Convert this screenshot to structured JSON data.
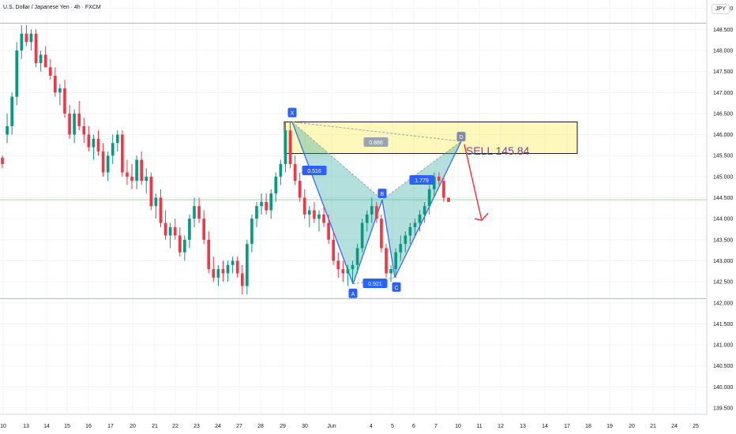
{
  "header": {
    "title": "U.S. Dollar / Japanese Yen · 4h · FXCM",
    "currency": "JPY"
  },
  "annotation": {
    "sell_label": "SELL 145.84"
  },
  "pattern": {
    "points": [
      {
        "name": "X",
        "date": "29",
        "price": 146.3
      },
      {
        "name": "A",
        "date": "Jun",
        "price": 142.45
      },
      {
        "name": "B",
        "date": "4",
        "price": 144.45
      },
      {
        "name": "C",
        "date": "5",
        "price": 142.6
      },
      {
        "name": "D",
        "date": "10",
        "price": 145.84
      }
    ],
    "ratios": [
      {
        "value": "0.516",
        "color": "#2962ff"
      },
      {
        "value": "0.886",
        "color": "#9aa5b1"
      },
      {
        "value": "0.921",
        "color": "#2962ff"
      },
      {
        "value": "1.779",
        "color": "#2962ff"
      }
    ]
  },
  "colors": {
    "up": "#089981",
    "down": "#f23645",
    "pattern_fill": "#26a69a",
    "zone_fill": "#ffeb3b",
    "arrow": "#f23645"
  },
  "chart_data": {
    "type": "candlestick",
    "title": "U.S. Dollar / Japanese Yen · 4h · FXCM",
    "ylabel": "JPY",
    "ylim": [
      139.35,
      149.2
    ],
    "y_ticks": [
      "149.000",
      "148.500",
      "148.000",
      "147.500",
      "147.000",
      "146.500",
      "146.000",
      "145.500",
      "145.000",
      "144.500",
      "144.000",
      "143.500",
      "143.000",
      "142.500",
      "142.000",
      "141.500",
      "141.000",
      "140.500",
      "140.000",
      "139.500"
    ],
    "x_ticks": [
      "10",
      "13",
      "14",
      "15",
      "16",
      "17",
      "20",
      "21",
      "22",
      "23",
      "24",
      "27",
      "28",
      "29",
      "30",
      "Jun",
      "4",
      "5",
      "6",
      "7",
      "10",
      "11",
      "12",
      "13",
      "14",
      "17",
      "18",
      "19",
      "20",
      "21",
      "24",
      "25"
    ],
    "horizontal_lines": [
      148.65,
      144.45,
      142.1
    ],
    "zone": {
      "from": "29",
      "to": "12",
      "low": 145.55,
      "high": 146.3
    },
    "projection": {
      "from_price": 145.84,
      "to_price": 144.0
    },
    "candles": [
      [
        145.45,
        145.5,
        145.2,
        145.3
      ],
      [
        146.0,
        146.5,
        145.8,
        146.2
      ],
      [
        146.2,
        147.0,
        146.0,
        146.9
      ],
      [
        146.9,
        148.2,
        146.7,
        148.0
      ],
      [
        148.0,
        148.6,
        147.8,
        148.4
      ],
      [
        148.4,
        148.6,
        148.1,
        148.2
      ],
      [
        148.2,
        148.5,
        148.0,
        148.4
      ],
      [
        148.4,
        148.5,
        147.6,
        147.7
      ],
      [
        147.7,
        148.0,
        147.5,
        147.9
      ],
      [
        147.9,
        148.1,
        147.6,
        147.6
      ],
      [
        147.6,
        147.8,
        147.3,
        147.4
      ],
      [
        147.4,
        147.6,
        146.9,
        147.0
      ],
      [
        147.0,
        147.2,
        146.7,
        147.1
      ],
      [
        147.1,
        147.3,
        146.4,
        146.5
      ],
      [
        146.5,
        146.7,
        145.9,
        146.0
      ],
      [
        146.0,
        146.6,
        145.8,
        146.5
      ],
      [
        146.5,
        146.8,
        146.1,
        146.2
      ],
      [
        146.2,
        146.4,
        145.8,
        146.0
      ],
      [
        146.0,
        146.2,
        145.6,
        145.7
      ],
      [
        145.7,
        146.0,
        145.4,
        145.9
      ],
      [
        145.9,
        146.1,
        145.5,
        145.6
      ],
      [
        145.6,
        145.8,
        145.0,
        145.1
      ],
      [
        145.1,
        145.6,
        144.9,
        145.5
      ],
      [
        145.5,
        146.0,
        145.3,
        145.8
      ],
      [
        145.8,
        146.1,
        145.6,
        146.0
      ],
      [
        146.0,
        146.1,
        145.0,
        145.1
      ],
      [
        145.1,
        145.4,
        144.8,
        145.0
      ],
      [
        145.0,
        145.3,
        144.7,
        144.9
      ],
      [
        144.9,
        145.5,
        144.7,
        145.4
      ],
      [
        145.4,
        145.6,
        144.8,
        144.9
      ],
      [
        144.9,
        145.2,
        144.6,
        145.0
      ],
      [
        145.0,
        145.1,
        144.2,
        144.3
      ],
      [
        144.3,
        144.6,
        144.0,
        144.5
      ],
      [
        144.5,
        144.7,
        143.8,
        143.9
      ],
      [
        143.9,
        144.2,
        143.5,
        143.6
      ],
      [
        143.6,
        143.9,
        143.3,
        143.8
      ],
      [
        143.8,
        144.0,
        143.5,
        143.6
      ],
      [
        143.6,
        143.8,
        143.1,
        143.2
      ],
      [
        143.2,
        143.6,
        143.0,
        143.5
      ],
      [
        143.5,
        144.1,
        143.3,
        144.0
      ],
      [
        144.0,
        144.5,
        143.8,
        144.3
      ],
      [
        144.3,
        144.5,
        143.9,
        144.0
      ],
      [
        144.0,
        144.2,
        143.4,
        143.5
      ],
      [
        143.5,
        143.7,
        142.7,
        142.8
      ],
      [
        142.8,
        143.1,
        142.5,
        142.6
      ],
      [
        142.6,
        142.9,
        142.4,
        142.8
      ],
      [
        142.8,
        143.0,
        142.5,
        142.7
      ],
      [
        142.7,
        143.0,
        142.5,
        142.9
      ],
      [
        142.9,
        143.1,
        142.7,
        143.0
      ],
      [
        143.0,
        143.1,
        142.6,
        142.7
      ],
      [
        142.7,
        142.9,
        142.2,
        142.4
      ],
      [
        142.4,
        143.5,
        142.2,
        143.4
      ],
      [
        143.4,
        144.1,
        143.2,
        144.0
      ],
      [
        144.0,
        144.4,
        143.8,
        144.3
      ],
      [
        144.3,
        144.6,
        144.1,
        144.4
      ],
      [
        144.4,
        144.6,
        144.1,
        144.2
      ],
      [
        144.2,
        144.7,
        144.0,
        144.6
      ],
      [
        144.6,
        145.1,
        144.4,
        145.0
      ],
      [
        145.0,
        145.4,
        144.8,
        145.3
      ],
      [
        145.3,
        146.3,
        145.1,
        146.1
      ],
      [
        146.1,
        146.3,
        145.2,
        145.3
      ],
      [
        145.3,
        145.5,
        144.8,
        144.9
      ],
      [
        144.9,
        145.1,
        144.4,
        144.5
      ],
      [
        144.5,
        144.7,
        144.0,
        144.1
      ],
      [
        144.1,
        144.3,
        143.8,
        144.2
      ],
      [
        144.2,
        144.4,
        143.9,
        144.0
      ],
      [
        144.0,
        144.2,
        143.7,
        144.1
      ],
      [
        144.1,
        144.3,
        143.8,
        143.9
      ],
      [
        143.9,
        144.1,
        143.4,
        143.5
      ],
      [
        143.5,
        143.7,
        142.9,
        143.0
      ],
      [
        143.0,
        143.2,
        142.6,
        142.8
      ],
      [
        142.8,
        143.0,
        142.5,
        142.7
      ],
      [
        142.7,
        142.9,
        142.4,
        142.8
      ],
      [
        142.8,
        143.0,
        142.5,
        142.9
      ],
      [
        142.9,
        143.4,
        142.7,
        143.3
      ],
      [
        143.3,
        144.0,
        143.2,
        143.9
      ],
      [
        143.9,
        144.2,
        143.7,
        144.1
      ],
      [
        144.1,
        144.5,
        143.9,
        144.3
      ],
      [
        144.3,
        144.4,
        143.9,
        144.0
      ],
      [
        144.0,
        144.1,
        143.2,
        143.3
      ],
      [
        143.3,
        143.4,
        142.6,
        142.7
      ],
      [
        142.7,
        142.9,
        142.5,
        142.8
      ],
      [
        142.8,
        143.3,
        142.6,
        143.2
      ],
      [
        143.2,
        143.6,
        143.0,
        143.4
      ],
      [
        143.4,
        143.7,
        143.2,
        143.6
      ],
      [
        143.6,
        143.9,
        143.4,
        143.8
      ],
      [
        143.8,
        144.0,
        143.6,
        143.9
      ],
      [
        143.9,
        144.2,
        143.7,
        144.1
      ],
      [
        144.1,
        144.4,
        143.9,
        144.3
      ],
      [
        144.3,
        144.8,
        144.1,
        144.7
      ],
      [
        144.7,
        145.1,
        144.5,
        145.0
      ],
      [
        145.0,
        145.1,
        144.8,
        144.9
      ],
      [
        144.9,
        145.0,
        144.4,
        144.5
      ],
      [
        144.5,
        144.5,
        144.4,
        144.4
      ]
    ]
  }
}
